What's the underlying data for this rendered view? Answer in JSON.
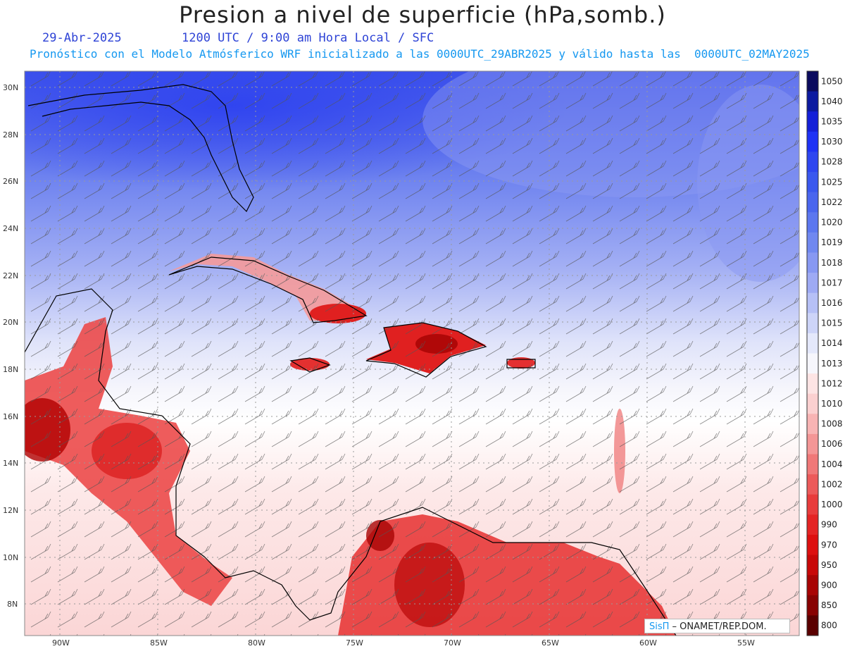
{
  "header": {
    "title": "Presion a nivel de superficie (hPa,somb.)",
    "date": "29-Abr-2025",
    "time_info": "1200 UTC / 9:00 am Hora Local / SFC",
    "model_info": "Pronóstico con el Modelo Atmósferico WRF inicializado a las 0000UTC_29ABR2025 y válido hasta las  0000UTC_02MAY2025"
  },
  "map": {
    "region": "Caribbean",
    "lat_ticks": [
      "30N",
      "28N",
      "26N",
      "24N",
      "22N",
      "20N",
      "18N",
      "16N",
      "14N",
      "12N",
      "10N",
      "8N"
    ],
    "lon_ticks": [
      "90W",
      "85W",
      "80W",
      "75W",
      "70W",
      "65W",
      "60W",
      "55W"
    ]
  },
  "colorbar": {
    "labels": [
      "1050",
      "1040",
      "1035",
      "1030",
      "1028",
      "1025",
      "1022",
      "1020",
      "1019",
      "1018",
      "1017",
      "1016",
      "1015",
      "1014",
      "1013",
      "1012",
      "1010",
      "1008",
      "1006",
      "1004",
      "1002",
      "1000",
      "990",
      "970",
      "950",
      "900",
      "850",
      "800"
    ],
    "colors": [
      "#0b0b5e",
      "#0c1aa0",
      "#1420d8",
      "#1e32f5",
      "#2e46f0",
      "#3a58ee",
      "#4a66ee",
      "#5c77ef",
      "#7088f0",
      "#8798f2",
      "#9eaaf4",
      "#b6c0f6",
      "#cdd4f8",
      "#e4e8fb",
      "#f6f6fc",
      "#fde4e4",
      "#fbd0d0",
      "#f8b4b4",
      "#f49696",
      "#f07878",
      "#ec5a5a",
      "#e83c3c",
      "#e42424",
      "#dd1010",
      "#c80808",
      "#a80404",
      "#880202",
      "#5a0000"
    ]
  },
  "credit": {
    "brand": "SisΠ",
    "text": " – ONAMET/REP.DOM."
  }
}
